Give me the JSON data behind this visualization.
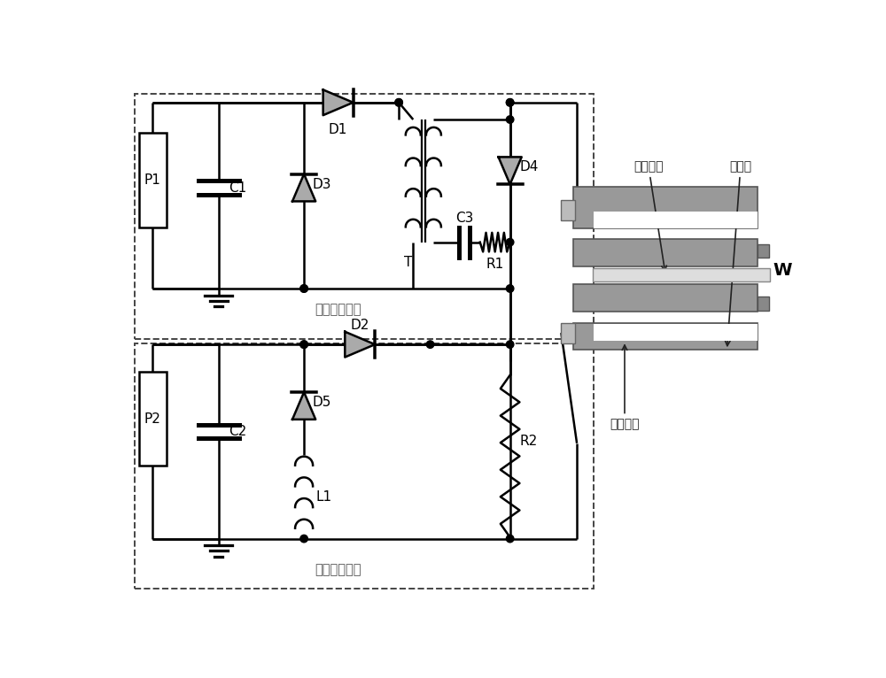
{
  "bg_color": "#ffffff",
  "line_color": "#000000",
  "lw": 1.8,
  "dashed_color": "#444444",
  "gray_fill": "#aaaaaa",
  "label_voltage_box": "脉冲电压回路",
  "label_current_box": "脉冲电流回路",
  "label_D1": "D1",
  "label_D2": "D2",
  "label_D3": "D3",
  "label_D4": "D4",
  "label_D5": "D5",
  "label_C1": "C1",
  "label_C2": "C2",
  "label_C3": "C3",
  "label_R1": "R1",
  "label_R2": "R2",
  "label_L1": "L1",
  "label_T": "T",
  "label_P1": "P1",
  "label_P2": "P2",
  "label_W": "W",
  "label_shaoshi": "烧蚀材料",
  "label_didianji": "地电极",
  "label_gaoyadian": "高压电极"
}
